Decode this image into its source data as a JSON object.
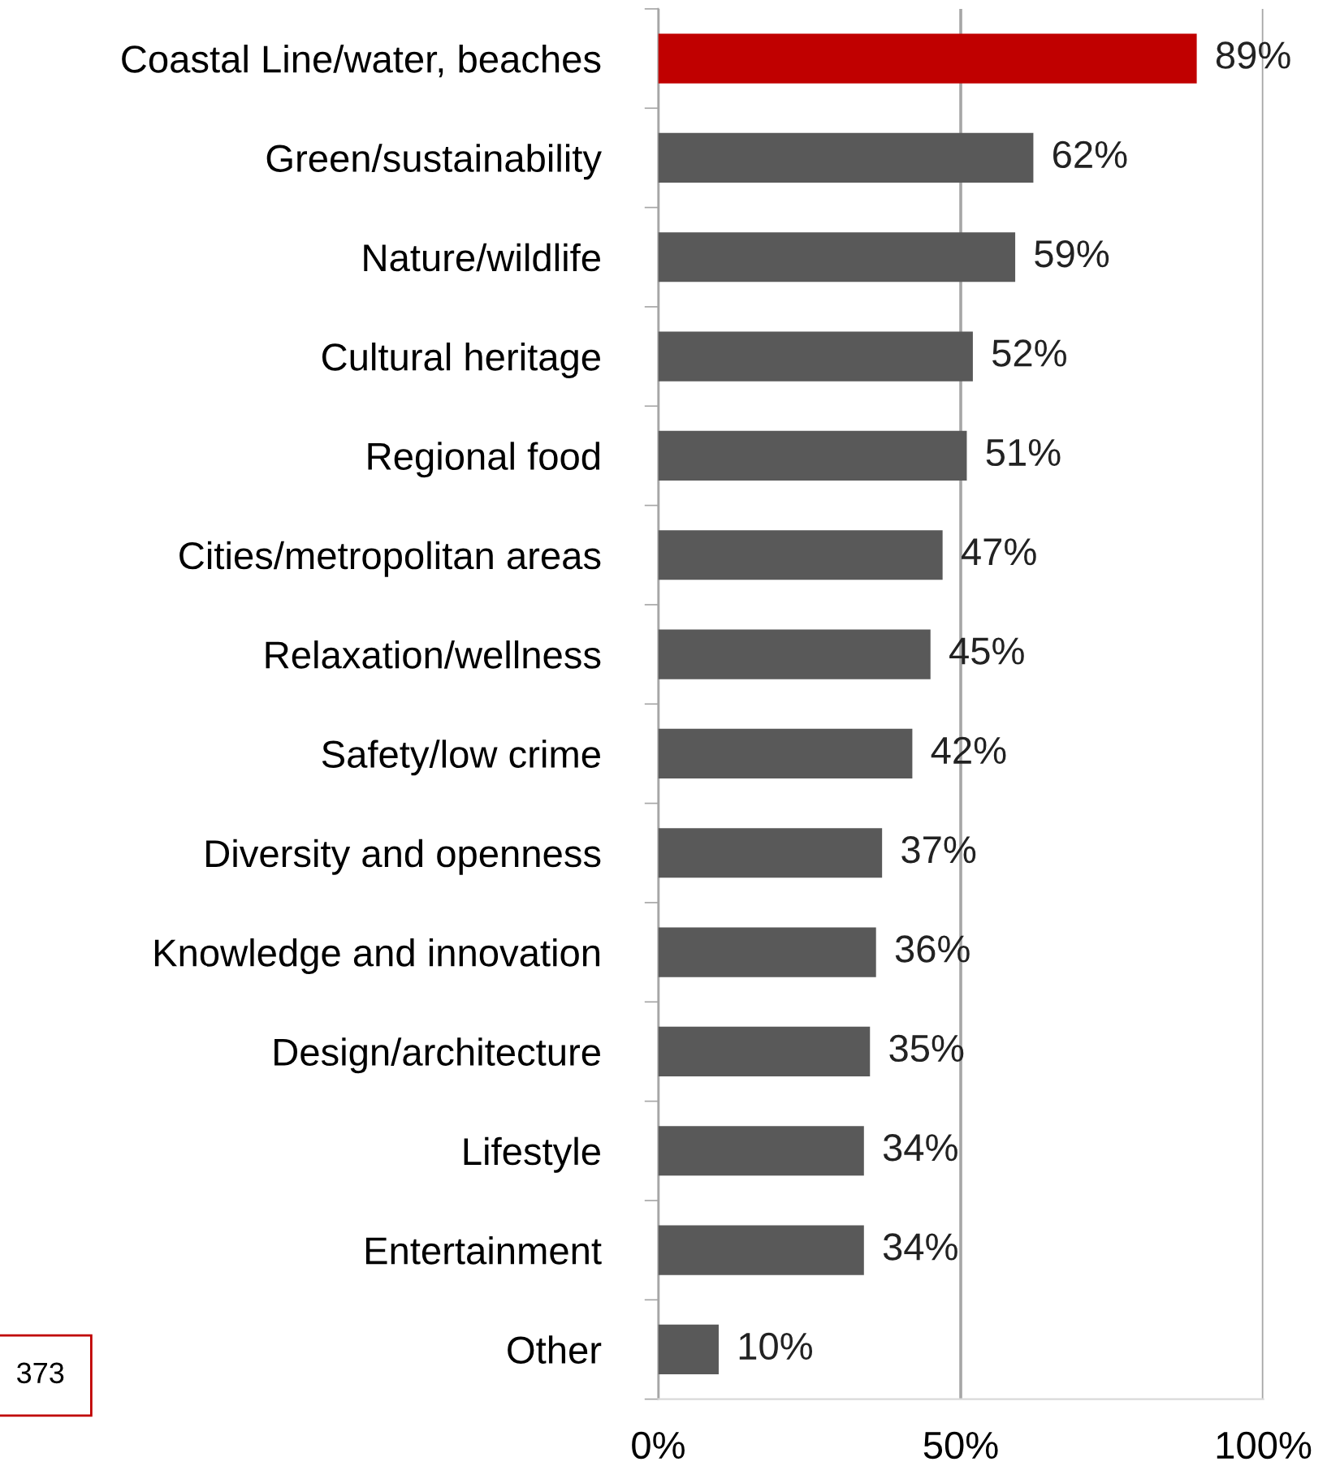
{
  "chart_data": {
    "type": "bar",
    "orientation": "horizontal",
    "categories": [
      "Coastal Line/water, beaches",
      "Green/sustainability",
      "Nature/wildlife",
      "Cultural heritage",
      "Regional food",
      "Cities/metropolitan areas",
      "Relaxation/wellness",
      "Safety/low crime",
      "Diversity and openness",
      "Knowledge and innovation",
      "Design/architecture",
      "Lifestyle",
      "Entertainment",
      "Other"
    ],
    "values": [
      89,
      62,
      59,
      52,
      51,
      47,
      45,
      42,
      37,
      36,
      35,
      34,
      34,
      10
    ],
    "value_labels": [
      "89%",
      "62%",
      "59%",
      "52%",
      "51%",
      "47%",
      "45%",
      "42%",
      "37%",
      "36%",
      "35%",
      "34%",
      "34%",
      "10%"
    ],
    "colors": [
      "#c00000",
      "#595959",
      "#595959",
      "#595959",
      "#595959",
      "#595959",
      "#595959",
      "#595959",
      "#595959",
      "#595959",
      "#595959",
      "#595959",
      "#595959",
      "#595959"
    ],
    "xlim": [
      0,
      100
    ],
    "xticks": [
      {
        "value": 0,
        "label": "0%"
      },
      {
        "value": 50,
        "label": "50%"
      },
      {
        "value": 100,
        "label": "100%"
      }
    ],
    "grid": "x",
    "legend": false,
    "annotations": [
      "373"
    ]
  }
}
